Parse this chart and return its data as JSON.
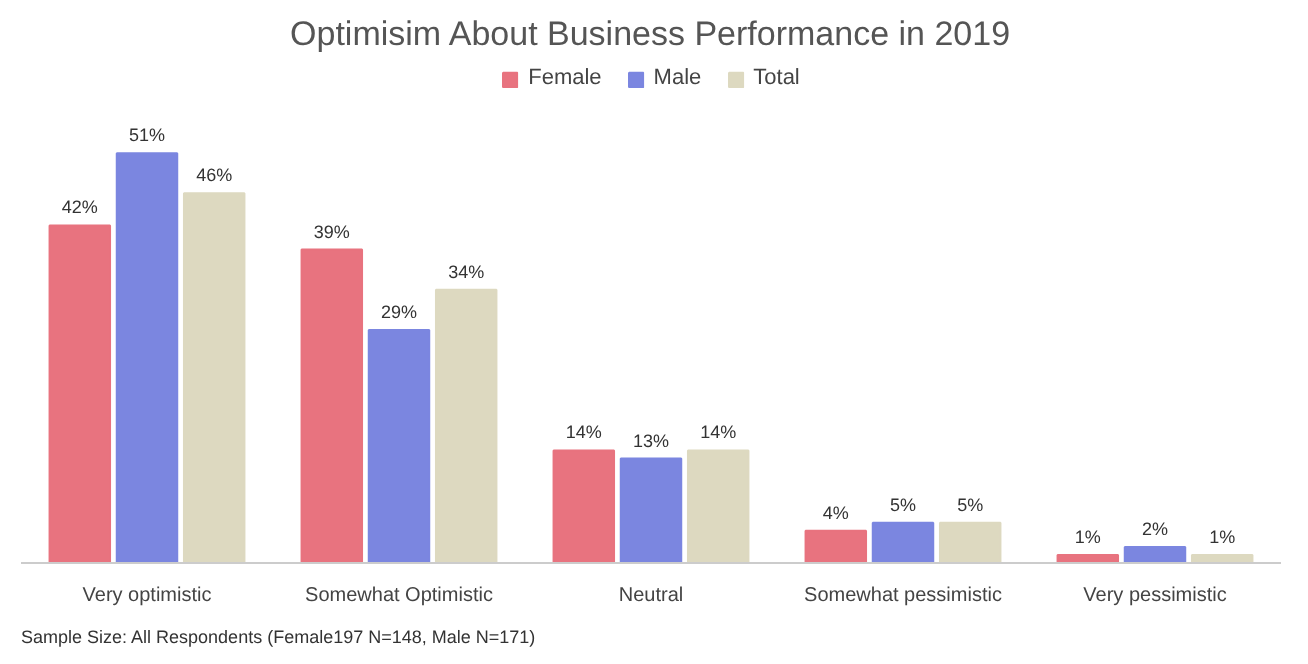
{
  "chart_data": {
    "type": "bar",
    "title": "Optimisim About Business Performance in 2019",
    "categories": [
      "Very optimistic",
      "Somewhat Optimistic",
      "Neutral",
      "Somewhat pessimistic",
      "Very pessimistic"
    ],
    "series": [
      {
        "name": "Female",
        "color": "#e8737f",
        "values": [
          42,
          39,
          14,
          4,
          1
        ],
        "value_labels": [
          "42%",
          "39%",
          "14%",
          "4%",
          "1%"
        ]
      },
      {
        "name": "Male",
        "color": "#7b86e0",
        "values": [
          51,
          29,
          13,
          5,
          2
        ],
        "value_labels": [
          "51%",
          "29%",
          "13%",
          "5%",
          "2%"
        ]
      },
      {
        "name": "Total",
        "color": "#ddd9c0",
        "values": [
          46,
          34,
          14,
          5,
          1
        ],
        "value_labels": [
          "46%",
          "34%",
          "14%",
          "5%",
          "1%"
        ]
      }
    ],
    "legend": "top",
    "annotations": [
      "Sample Size: All Respondents (Female197 N=148, Male N=171)"
    ]
  }
}
